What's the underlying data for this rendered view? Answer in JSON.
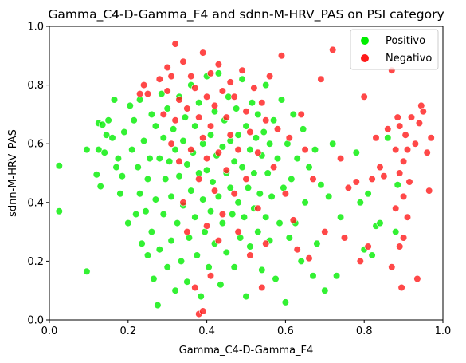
{
  "chart_data": {
    "type": "scatter",
    "title": "Gamma_C4-D-Gamma_F4 and sdnn-M-HRV_PAS on PSI category",
    "xlabel": "Gamma_C4-D-Gamma_F4",
    "ylabel": "sdnn-M-HRV_PAS",
    "xlim": [
      0.0,
      1.0
    ],
    "ylim": [
      0.0,
      1.0
    ],
    "xticks": [
      "0.0",
      "0.2",
      "0.4",
      "0.6",
      "0.8",
      "1.0"
    ],
    "yticks": [
      "0.0",
      "0.2",
      "0.4",
      "0.6",
      "0.8",
      "1.0"
    ],
    "grid": false,
    "legend_position": "top-right",
    "series": [
      {
        "name": "Positivo",
        "color": "#00ee00",
        "points": [
          [
            0.025,
            0.525
          ],
          [
            0.025,
            0.37
          ],
          [
            0.095,
            0.58
          ],
          [
            0.095,
            0.165
          ],
          [
            0.12,
            0.495
          ],
          [
            0.125,
            0.58
          ],
          [
            0.125,
            0.67
          ],
          [
            0.13,
            0.455
          ],
          [
            0.135,
            0.665
          ],
          [
            0.14,
            0.57
          ],
          [
            0.145,
            0.63
          ],
          [
            0.15,
            0.68
          ],
          [
            0.16,
            0.62
          ],
          [
            0.165,
            0.75
          ],
          [
            0.17,
            0.52
          ],
          [
            0.175,
            0.55
          ],
          [
            0.18,
            0.43
          ],
          [
            0.185,
            0.49
          ],
          [
            0.19,
            0.64
          ],
          [
            0.2,
            0.33
          ],
          [
            0.205,
            0.73
          ],
          [
            0.21,
            0.58
          ],
          [
            0.215,
            0.68
          ],
          [
            0.22,
            0.36
          ],
          [
            0.225,
            0.52
          ],
          [
            0.23,
            0.75
          ],
          [
            0.23,
            0.43
          ],
          [
            0.235,
            0.26
          ],
          [
            0.24,
            0.61
          ],
          [
            0.245,
            0.37
          ],
          [
            0.25,
            0.48
          ],
          [
            0.25,
            0.22
          ],
          [
            0.255,
            0.55
          ],
          [
            0.26,
            0.7
          ],
          [
            0.26,
            0.3
          ],
          [
            0.265,
            0.14
          ],
          [
            0.27,
            0.66
          ],
          [
            0.27,
            0.41
          ],
          [
            0.275,
            0.05
          ],
          [
            0.28,
            0.55
          ],
          [
            0.28,
            0.24
          ],
          [
            0.285,
            0.77
          ],
          [
            0.29,
            0.62
          ],
          [
            0.29,
            0.36
          ],
          [
            0.295,
            0.48
          ],
          [
            0.3,
            0.18
          ],
          [
            0.3,
            0.72
          ],
          [
            0.305,
            0.54
          ],
          [
            0.31,
            0.27
          ],
          [
            0.31,
            0.42
          ],
          [
            0.315,
            0.65
          ],
          [
            0.32,
            0.1
          ],
          [
            0.32,
            0.58
          ],
          [
            0.325,
            0.33
          ],
          [
            0.33,
            0.76
          ],
          [
            0.33,
            0.49
          ],
          [
            0.335,
            0.2
          ],
          [
            0.34,
            0.61
          ],
          [
            0.34,
            0.39
          ],
          [
            0.345,
            0.69
          ],
          [
            0.35,
            0.53
          ],
          [
            0.35,
            0.13
          ],
          [
            0.355,
            0.28
          ],
          [
            0.36,
            0.44
          ],
          [
            0.36,
            0.8
          ],
          [
            0.365,
            0.57
          ],
          [
            0.37,
            0.35
          ],
          [
            0.37,
            0.66
          ],
          [
            0.375,
            0.22
          ],
          [
            0.38,
            0.5
          ],
          [
            0.38,
            0.74
          ],
          [
            0.385,
            0.08
          ],
          [
            0.39,
            0.41
          ],
          [
            0.39,
            0.6
          ],
          [
            0.395,
            0.3
          ],
          [
            0.4,
            0.51
          ],
          [
            0.4,
            0.83
          ],
          [
            0.405,
            0.18
          ],
          [
            0.41,
            0.63
          ],
          [
            0.41,
            0.37
          ],
          [
            0.415,
            0.47
          ],
          [
            0.42,
            0.71
          ],
          [
            0.42,
            0.26
          ],
          [
            0.425,
            0.56
          ],
          [
            0.43,
            0.84
          ],
          [
            0.43,
            0.42
          ],
          [
            0.435,
            0.12
          ],
          [
            0.44,
            0.59
          ],
          [
            0.44,
            0.33
          ],
          [
            0.445,
            0.68
          ],
          [
            0.45,
            0.5
          ],
          [
            0.45,
            0.23
          ],
          [
            0.455,
            0.76
          ],
          [
            0.46,
            0.45
          ],
          [
            0.46,
            0.61
          ],
          [
            0.465,
            0.36
          ],
          [
            0.47,
            0.54
          ],
          [
            0.47,
            0.18
          ],
          [
            0.475,
            0.72
          ],
          [
            0.48,
            0.4
          ],
          [
            0.48,
            0.63
          ],
          [
            0.485,
            0.28
          ],
          [
            0.49,
            0.82
          ],
          [
            0.49,
            0.52
          ],
          [
            0.495,
            0.35
          ],
          [
            0.5,
            0.08
          ],
          [
            0.5,
            0.66
          ],
          [
            0.505,
            0.45
          ],
          [
            0.51,
            0.58
          ],
          [
            0.51,
            0.25
          ],
          [
            0.515,
            0.74
          ],
          [
            0.52,
            0.38
          ],
          [
            0.52,
            0.5
          ],
          [
            0.525,
            0.62
          ],
          [
            0.53,
            0.3
          ],
          [
            0.53,
            0.7
          ],
          [
            0.535,
            0.43
          ],
          [
            0.54,
            0.56
          ],
          [
            0.54,
            0.17
          ],
          [
            0.545,
            0.64
          ],
          [
            0.55,
            0.35
          ],
          [
            0.55,
            0.8
          ],
          [
            0.555,
            0.5
          ],
          [
            0.56,
            0.27
          ],
          [
            0.56,
            0.6
          ],
          [
            0.565,
            0.42
          ],
          [
            0.57,
            0.68
          ],
          [
            0.575,
            0.14
          ],
          [
            0.58,
            0.55
          ],
          [
            0.585,
            0.33
          ],
          [
            0.59,
            0.75
          ],
          [
            0.595,
            0.45
          ],
          [
            0.6,
            0.06
          ],
          [
            0.605,
            0.6
          ],
          [
            0.61,
            0.28
          ],
          [
            0.615,
            0.48
          ],
          [
            0.62,
            0.7
          ],
          [
            0.625,
            0.33
          ],
          [
            0.63,
            0.55
          ],
          [
            0.64,
            0.2
          ],
          [
            0.645,
            0.65
          ],
          [
            0.65,
            0.4
          ],
          [
            0.66,
            0.52
          ],
          [
            0.67,
            0.15
          ],
          [
            0.675,
            0.58
          ],
          [
            0.68,
            0.26
          ],
          [
            0.69,
            0.46
          ],
          [
            0.7,
            0.1
          ],
          [
            0.71,
            0.42
          ],
          [
            0.72,
            0.6
          ],
          [
            0.73,
            0.15
          ],
          [
            0.74,
            0.35
          ],
          [
            0.78,
            0.57
          ],
          [
            0.79,
            0.4
          ],
          [
            0.8,
            0.24
          ],
          [
            0.81,
            0.43
          ],
          [
            0.82,
            0.22
          ],
          [
            0.83,
            0.32
          ],
          [
            0.84,
            0.33
          ],
          [
            0.86,
            0.62
          ],
          [
            0.88,
            0.3
          ],
          [
            0.885,
            0.46
          ]
        ]
      },
      {
        "name": "Negativo",
        "color": "#ff1a1a",
        "points": [
          [
            0.23,
            0.77
          ],
          [
            0.24,
            0.8
          ],
          [
            0.25,
            0.77
          ],
          [
            0.28,
            0.82
          ],
          [
            0.29,
            0.7
          ],
          [
            0.3,
            0.78
          ],
          [
            0.3,
            0.86
          ],
          [
            0.31,
            0.83
          ],
          [
            0.31,
            0.6
          ],
          [
            0.32,
            0.94
          ],
          [
            0.32,
            0.68
          ],
          [
            0.33,
            0.75
          ],
          [
            0.33,
            0.54
          ],
          [
            0.34,
            0.88
          ],
          [
            0.34,
            0.4
          ],
          [
            0.35,
            0.72
          ],
          [
            0.35,
            0.3
          ],
          [
            0.36,
            0.83
          ],
          [
            0.36,
            0.58
          ],
          [
            0.37,
            0.79
          ],
          [
            0.37,
            0.11
          ],
          [
            0.38,
            0.69
          ],
          [
            0.38,
            0.48
          ],
          [
            0.38,
            0.02
          ],
          [
            0.39,
            0.91
          ],
          [
            0.39,
            0.62
          ],
          [
            0.39,
            0.03
          ],
          [
            0.4,
            0.76
          ],
          [
            0.4,
            0.55
          ],
          [
            0.4,
            0.32
          ],
          [
            0.41,
            0.84
          ],
          [
            0.41,
            0.66
          ],
          [
            0.41,
            0.15
          ],
          [
            0.42,
            0.73
          ],
          [
            0.42,
            0.44
          ],
          [
            0.43,
            0.87
          ],
          [
            0.43,
            0.57
          ],
          [
            0.43,
            0.27
          ],
          [
            0.44,
            0.78
          ],
          [
            0.44,
            0.36
          ],
          [
            0.45,
            0.69
          ],
          [
            0.45,
            0.51
          ],
          [
            0.46,
            0.81
          ],
          [
            0.46,
            0.63
          ],
          [
            0.47,
            0.43
          ],
          [
            0.47,
            0.76
          ],
          [
            0.48,
            0.3
          ],
          [
            0.48,
            0.58
          ],
          [
            0.49,
            0.85
          ],
          [
            0.5,
            0.71
          ],
          [
            0.5,
            0.48
          ],
          [
            0.51,
            0.64
          ],
          [
            0.51,
            0.22
          ],
          [
            0.52,
            0.79
          ],
          [
            0.53,
            0.57
          ],
          [
            0.53,
            0.38
          ],
          [
            0.54,
            0.74
          ],
          [
            0.54,
            0.11
          ],
          [
            0.55,
            0.68
          ],
          [
            0.55,
            0.26
          ],
          [
            0.56,
            0.83
          ],
          [
            0.57,
            0.52
          ],
          [
            0.58,
            0.65
          ],
          [
            0.59,
            0.9
          ],
          [
            0.6,
            0.43
          ],
          [
            0.61,
            0.62
          ],
          [
            0.62,
            0.34
          ],
          [
            0.63,
            0.24
          ],
          [
            0.64,
            0.7
          ],
          [
            0.65,
            0.58
          ],
          [
            0.66,
            0.21
          ],
          [
            0.67,
            0.48
          ],
          [
            0.69,
            0.82
          ],
          [
            0.7,
            0.3
          ],
          [
            0.72,
            0.92
          ],
          [
            0.74,
            0.55
          ],
          [
            0.75,
            0.28
          ],
          [
            0.76,
            0.45
          ],
          [
            0.78,
            0.47
          ],
          [
            0.79,
            0.2
          ],
          [
            0.8,
            0.76
          ],
          [
            0.81,
            0.25
          ],
          [
            0.82,
            0.48
          ],
          [
            0.83,
            0.62
          ],
          [
            0.84,
            0.52
          ],
          [
            0.85,
            0.49
          ],
          [
            0.86,
            0.65
          ],
          [
            0.87,
            0.18
          ],
          [
            0.87,
            0.85
          ],
          [
            0.88,
            0.58
          ],
          [
            0.88,
            0.38
          ],
          [
            0.885,
            0.69
          ],
          [
            0.89,
            0.25
          ],
          [
            0.89,
            0.5
          ],
          [
            0.89,
            0.66
          ],
          [
            0.895,
            0.11
          ],
          [
            0.9,
            0.28
          ],
          [
            0.9,
            0.42
          ],
          [
            0.9,
            0.54
          ],
          [
            0.905,
            0.63
          ],
          [
            0.91,
            0.35
          ],
          [
            0.91,
            0.58
          ],
          [
            0.915,
            0.47
          ],
          [
            0.92,
            0.69
          ],
          [
            0.93,
            0.6
          ],
          [
            0.935,
            0.14
          ],
          [
            0.94,
            0.67
          ],
          [
            0.945,
            0.73
          ],
          [
            0.95,
            0.71
          ],
          [
            0.96,
            0.57
          ],
          [
            0.965,
            0.44
          ],
          [
            0.97,
            0.62
          ]
        ]
      }
    ]
  }
}
